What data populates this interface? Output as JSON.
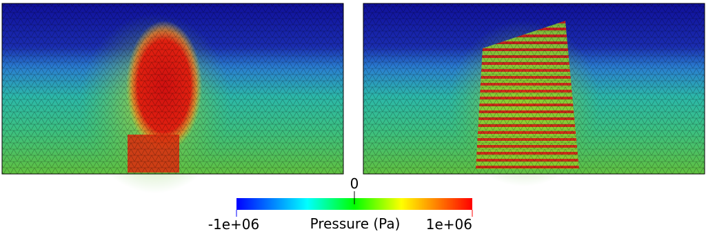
{
  "colorbar": {
    "title": "Pressure (Pa)",
    "range": [
      -1000000,
      1000000
    ],
    "ticks": [
      {
        "value": -1000000,
        "label": "-1e+06"
      },
      {
        "value": 0,
        "label": "0"
      },
      {
        "value": 1000000,
        "label": "1e+06"
      }
    ]
  }
}
